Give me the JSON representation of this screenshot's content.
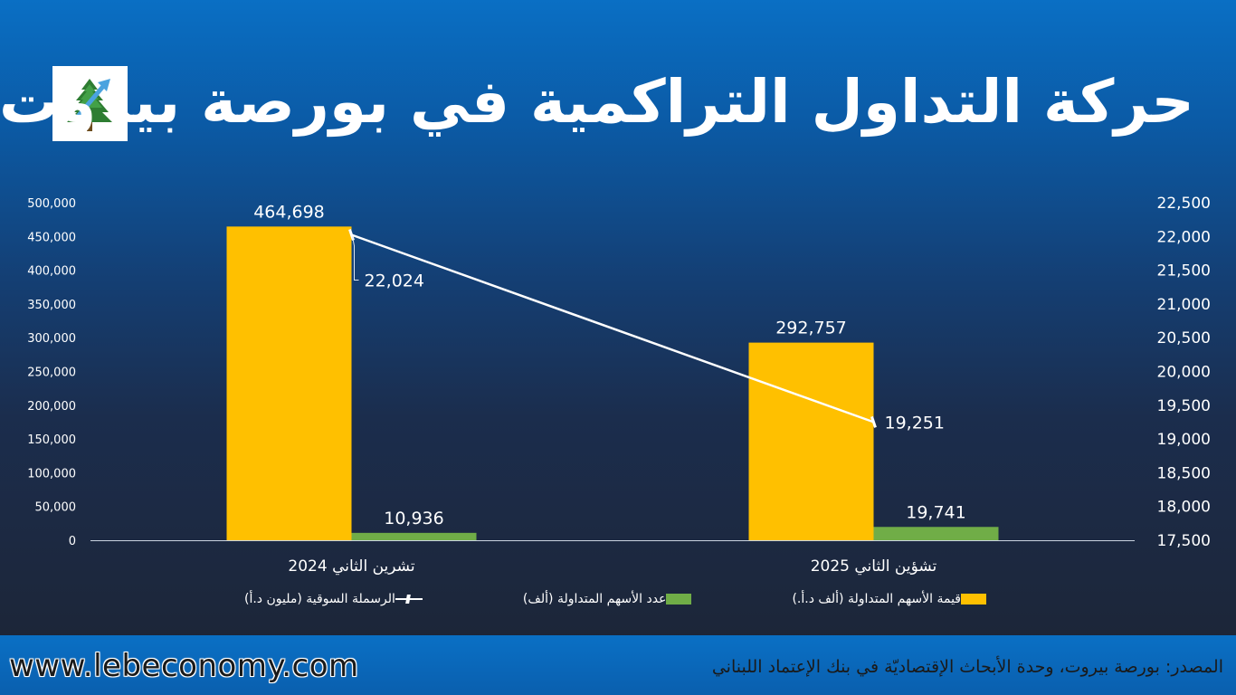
{
  "header": {
    "title": "حركة التداول التراكمية في بورصة بيروت"
  },
  "footer": {
    "website": "www.lebeconomy.com",
    "source": "المصدر: بورصة بيروت، وحدة الأبحاث الإقتصاديّة في بنك الإعتماد اللبناني"
  },
  "colors": {
    "value_bar": "#ffc000",
    "volume_bar": "#70ad47",
    "cap_line": "#ffffff"
  },
  "chart_data": {
    "type": "bar",
    "title": "حركة التداول التراكمية في بورصة بيروت",
    "categories": [
      "تشرين الثاني 2024",
      "تشؤين الثاني 2025"
    ],
    "series": [
      {
        "name": "قيمة الأسهم المتداولة (ألف د.أ.)",
        "type": "bar",
        "axis": "left",
        "values": [
          464698,
          292757
        ],
        "labels": [
          "464,698",
          "292,757"
        ]
      },
      {
        "name": "عدد الأسهم المتداولة (ألف)",
        "type": "bar",
        "axis": "left",
        "values": [
          10936,
          19741
        ],
        "labels": [
          "10,936",
          "19,741"
        ]
      },
      {
        "name": "الرسملة السوقية (مليون د.أ)",
        "type": "line",
        "axis": "right",
        "values": [
          22024,
          19251
        ],
        "labels": [
          "22,024",
          "19,251"
        ]
      }
    ],
    "y_left": {
      "min": 0,
      "max": 500000,
      "ticks": [
        "0",
        "50,000",
        "100,000",
        "150,000",
        "200,000",
        "250,000",
        "300,000",
        "350,000",
        "400,000",
        "450,000",
        "500,000"
      ]
    },
    "y_right": {
      "min": 17500,
      "max": 22500,
      "ticks": [
        "17,500",
        "18,000",
        "18,500",
        "19,000",
        "19,500",
        "20,000",
        "20,500",
        "21,000",
        "21,500",
        "22,000",
        "22,500"
      ]
    },
    "grid": false,
    "legend": "bottom"
  }
}
